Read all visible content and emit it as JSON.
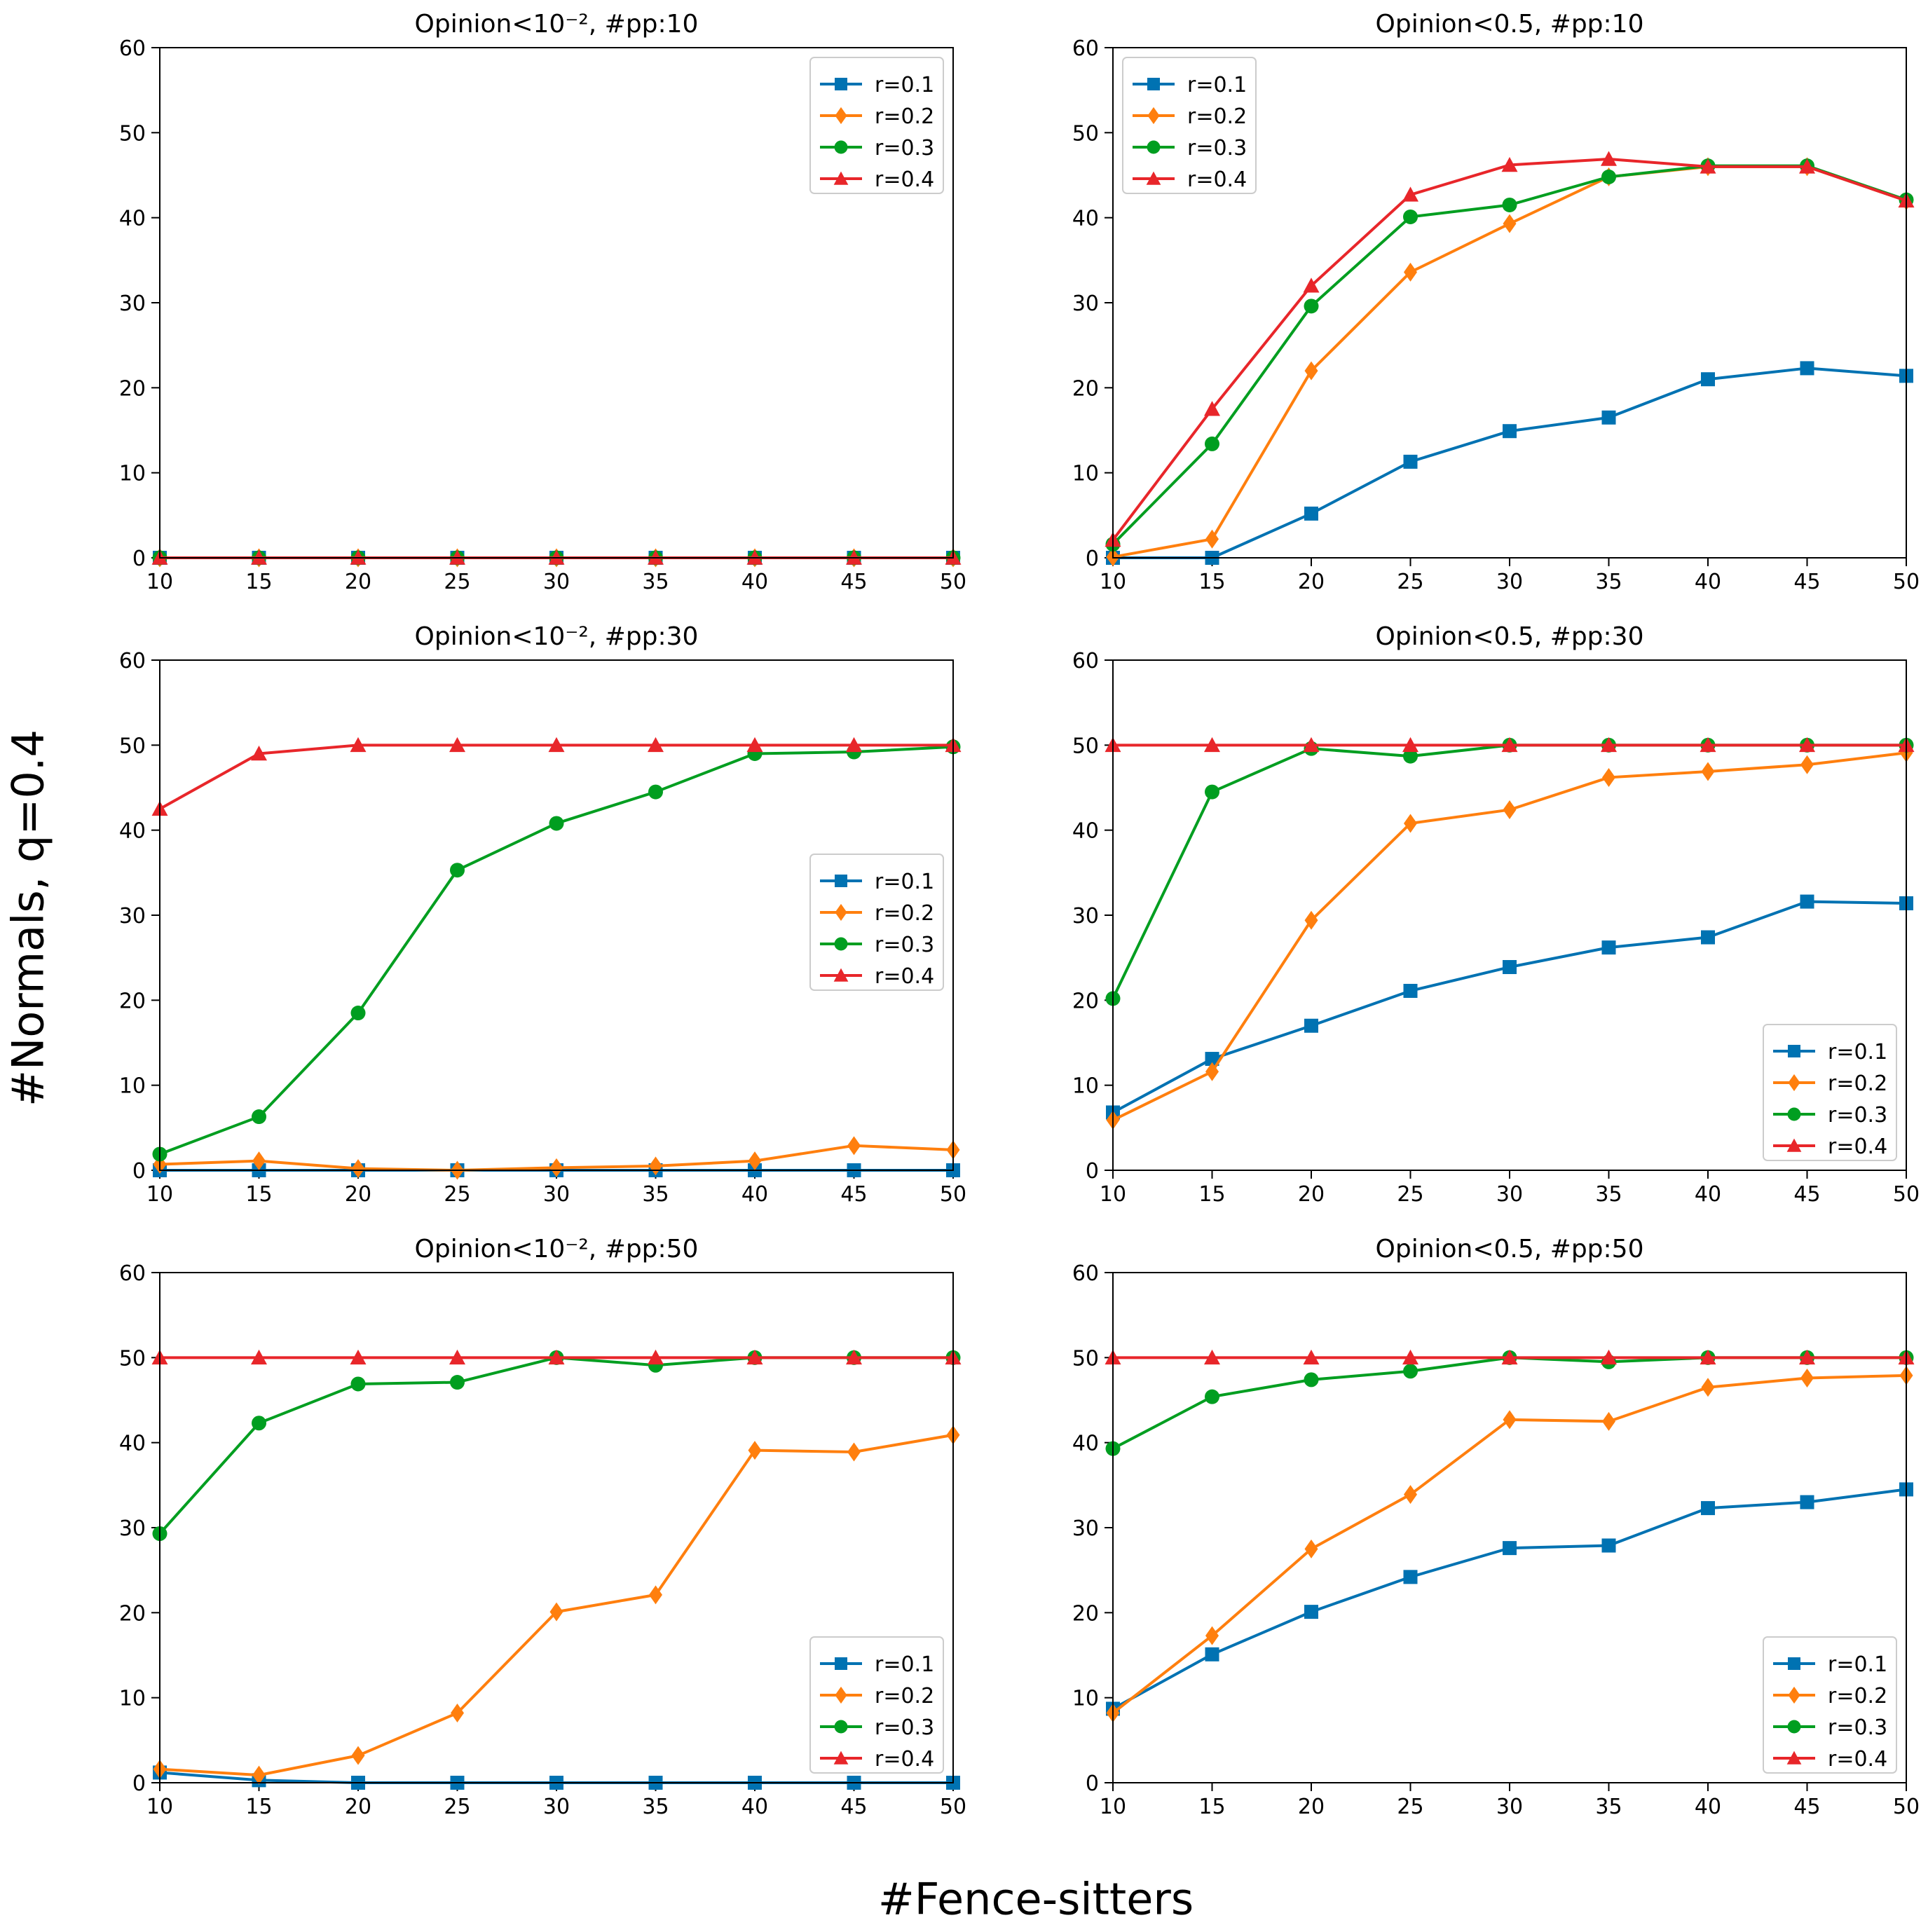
{
  "figure": {
    "ylabel": "#Normals, q=0.4",
    "xlabel": "#Fence-sitters"
  },
  "colors": {
    "r=0.1": "#0072b2",
    "r=0.2": "#ff7f0e",
    "r=0.3": "#009e20",
    "r=0.4": "#e8262a"
  },
  "chart_data": [
    {
      "type": "line",
      "title": "Opinion<10⁻², #pp:10",
      "xlabel": "",
      "ylabel": "",
      "x": [
        10,
        15,
        20,
        25,
        30,
        35,
        40,
        45,
        50
      ],
      "xticks": [
        "10",
        "15",
        "20",
        "25",
        "30",
        "35",
        "40",
        "45",
        "50"
      ],
      "yticks": [
        "0",
        "10",
        "20",
        "30",
        "40",
        "50",
        "60"
      ],
      "xlim": [
        10,
        50
      ],
      "ylim": [
        0,
        60
      ],
      "legend": "top-right",
      "series": [
        {
          "name": "r=0.1",
          "marker": "square",
          "values": [
            0,
            0,
            0,
            0,
            0,
            0,
            0,
            0,
            0
          ]
        },
        {
          "name": "r=0.2",
          "marker": "diamond",
          "values": [
            0,
            0,
            0,
            0,
            0,
            0,
            0,
            0,
            0
          ]
        },
        {
          "name": "r=0.3",
          "marker": "circle",
          "values": [
            0,
            0,
            0,
            0,
            0,
            0,
            0,
            0,
            0
          ]
        },
        {
          "name": "r=0.4",
          "marker": "triangle",
          "values": [
            0,
            0,
            0,
            0,
            0,
            0,
            0,
            0,
            0
          ]
        }
      ]
    },
    {
      "type": "line",
      "title": "Opinion<0.5, #pp:10",
      "xlabel": "",
      "ylabel": "",
      "x": [
        10,
        15,
        20,
        25,
        30,
        35,
        40,
        45,
        50
      ],
      "xticks": [
        "10",
        "15",
        "20",
        "25",
        "30",
        "35",
        "40",
        "45",
        "50"
      ],
      "yticks": [
        "0",
        "10",
        "20",
        "30",
        "40",
        "50",
        "60"
      ],
      "xlim": [
        10,
        50
      ],
      "ylim": [
        0,
        60
      ],
      "legend": "top-left",
      "series": [
        {
          "name": "r=0.1",
          "marker": "square",
          "values": [
            0,
            0,
            5.2,
            11.3,
            14.9,
            16.5,
            21.0,
            22.3,
            21.4
          ]
        },
        {
          "name": "r=0.2",
          "marker": "diamond",
          "values": [
            0.1,
            2.2,
            22.0,
            33.6,
            39.3,
            44.8,
            46.0,
            46.0,
            42.0
          ]
        },
        {
          "name": "r=0.3",
          "marker": "circle",
          "values": [
            1.6,
            13.4,
            29.6,
            40.1,
            41.5,
            44.8,
            46.1,
            46.1,
            42.1
          ]
        },
        {
          "name": "r=0.4",
          "marker": "triangle",
          "values": [
            2.1,
            17.5,
            32.0,
            42.7,
            46.2,
            46.9,
            46.0,
            46.0,
            42.0
          ]
        }
      ]
    },
    {
      "type": "line",
      "title": "Opinion<10⁻², #pp:30",
      "xlabel": "",
      "ylabel": "",
      "x": [
        10,
        15,
        20,
        25,
        30,
        35,
        40,
        45,
        50
      ],
      "xticks": [
        "10",
        "15",
        "20",
        "25",
        "30",
        "35",
        "40",
        "45",
        "50"
      ],
      "yticks": [
        "0",
        "10",
        "20",
        "30",
        "40",
        "50",
        "60"
      ],
      "xlim": [
        10,
        50
      ],
      "ylim": [
        0,
        60
      ],
      "legend": "center-right",
      "series": [
        {
          "name": "r=0.1",
          "marker": "square",
          "values": [
            0,
            0,
            0,
            0,
            0,
            0,
            0,
            0,
            0
          ]
        },
        {
          "name": "r=0.2",
          "marker": "diamond",
          "values": [
            0.7,
            1.1,
            0.2,
            0,
            0.3,
            0.5,
            1.1,
            2.9,
            2.4
          ]
        },
        {
          "name": "r=0.3",
          "marker": "circle",
          "values": [
            1.9,
            6.3,
            18.5,
            35.3,
            40.8,
            44.5,
            49.0,
            49.2,
            49.8
          ]
        },
        {
          "name": "r=0.4",
          "marker": "triangle",
          "values": [
            42.5,
            49.0,
            50.0,
            50.0,
            50.0,
            50.0,
            50.0,
            50.0,
            50.0
          ]
        }
      ]
    },
    {
      "type": "line",
      "title": "Opinion<0.5, #pp:30",
      "xlabel": "",
      "ylabel": "",
      "x": [
        10,
        15,
        20,
        25,
        30,
        35,
        40,
        45,
        50
      ],
      "xticks": [
        "10",
        "15",
        "20",
        "25",
        "30",
        "35",
        "40",
        "45",
        "50"
      ],
      "yticks": [
        "0",
        "10",
        "20",
        "30",
        "40",
        "50",
        "60"
      ],
      "xlim": [
        10,
        50
      ],
      "ylim": [
        0,
        60
      ],
      "legend": "bottom-right",
      "series": [
        {
          "name": "r=0.1",
          "marker": "square",
          "values": [
            6.8,
            13.1,
            17.0,
            21.1,
            23.9,
            26.2,
            27.4,
            31.6,
            31.4
          ]
        },
        {
          "name": "r=0.2",
          "marker": "diamond",
          "values": [
            5.9,
            11.6,
            29.4,
            40.8,
            42.4,
            46.2,
            46.9,
            47.7,
            49.1
          ]
        },
        {
          "name": "r=0.3",
          "marker": "circle",
          "values": [
            20.2,
            44.5,
            49.6,
            48.7,
            50.0,
            50.0,
            50.0,
            50.0,
            50.0
          ]
        },
        {
          "name": "r=0.4",
          "marker": "triangle",
          "values": [
            50.0,
            50.0,
            50.0,
            50.0,
            50.0,
            50.0,
            50.0,
            50.0,
            50.0
          ]
        }
      ]
    },
    {
      "type": "line",
      "title": "Opinion<10⁻², #pp:50",
      "xlabel": "",
      "ylabel": "",
      "x": [
        10,
        15,
        20,
        25,
        30,
        35,
        40,
        45,
        50
      ],
      "xticks": [
        "10",
        "15",
        "20",
        "25",
        "30",
        "35",
        "40",
        "45",
        "50"
      ],
      "yticks": [
        "0",
        "10",
        "20",
        "30",
        "40",
        "50",
        "60"
      ],
      "xlim": [
        10,
        50
      ],
      "ylim": [
        0,
        60
      ],
      "legend": "bottom-right",
      "series": [
        {
          "name": "r=0.1",
          "marker": "square",
          "values": [
            1.2,
            0.3,
            0,
            0,
            0,
            0,
            0,
            0,
            0
          ]
        },
        {
          "name": "r=0.2",
          "marker": "diamond",
          "values": [
            1.6,
            0.9,
            3.2,
            8.2,
            20.1,
            22.1,
            39.1,
            38.9,
            40.9
          ]
        },
        {
          "name": "r=0.3",
          "marker": "circle",
          "values": [
            29.3,
            42.3,
            46.9,
            47.1,
            50.0,
            49.1,
            50.0,
            50.0,
            50.0
          ]
        },
        {
          "name": "r=0.4",
          "marker": "triangle",
          "values": [
            50.0,
            50.0,
            50.0,
            50.0,
            50.0,
            50.0,
            50.0,
            50.0,
            50.0
          ]
        }
      ]
    },
    {
      "type": "line",
      "title": "Opinion<0.5, #pp:50",
      "xlabel": "",
      "ylabel": "",
      "x": [
        10,
        15,
        20,
        25,
        30,
        35,
        40,
        45,
        50
      ],
      "xticks": [
        "10",
        "15",
        "20",
        "25",
        "30",
        "35",
        "40",
        "45",
        "50"
      ],
      "yticks": [
        "0",
        "10",
        "20",
        "30",
        "40",
        "50",
        "60"
      ],
      "xlim": [
        10,
        50
      ],
      "ylim": [
        0,
        60
      ],
      "legend": "bottom-right",
      "series": [
        {
          "name": "r=0.1",
          "marker": "square",
          "values": [
            8.7,
            15.1,
            20.1,
            24.2,
            27.6,
            27.9,
            32.3,
            33.0,
            34.5
          ]
        },
        {
          "name": "r=0.2",
          "marker": "diamond",
          "values": [
            8.2,
            17.3,
            27.5,
            33.9,
            42.7,
            42.5,
            46.5,
            47.6,
            47.9
          ]
        },
        {
          "name": "r=0.3",
          "marker": "circle",
          "values": [
            39.3,
            45.4,
            47.4,
            48.4,
            50.0,
            49.5,
            50.0,
            50.0,
            50.0
          ]
        },
        {
          "name": "r=0.4",
          "marker": "triangle",
          "values": [
            50.0,
            50.0,
            50.0,
            50.0,
            50.0,
            50.0,
            50.0,
            50.0,
            50.0
          ]
        }
      ]
    }
  ]
}
